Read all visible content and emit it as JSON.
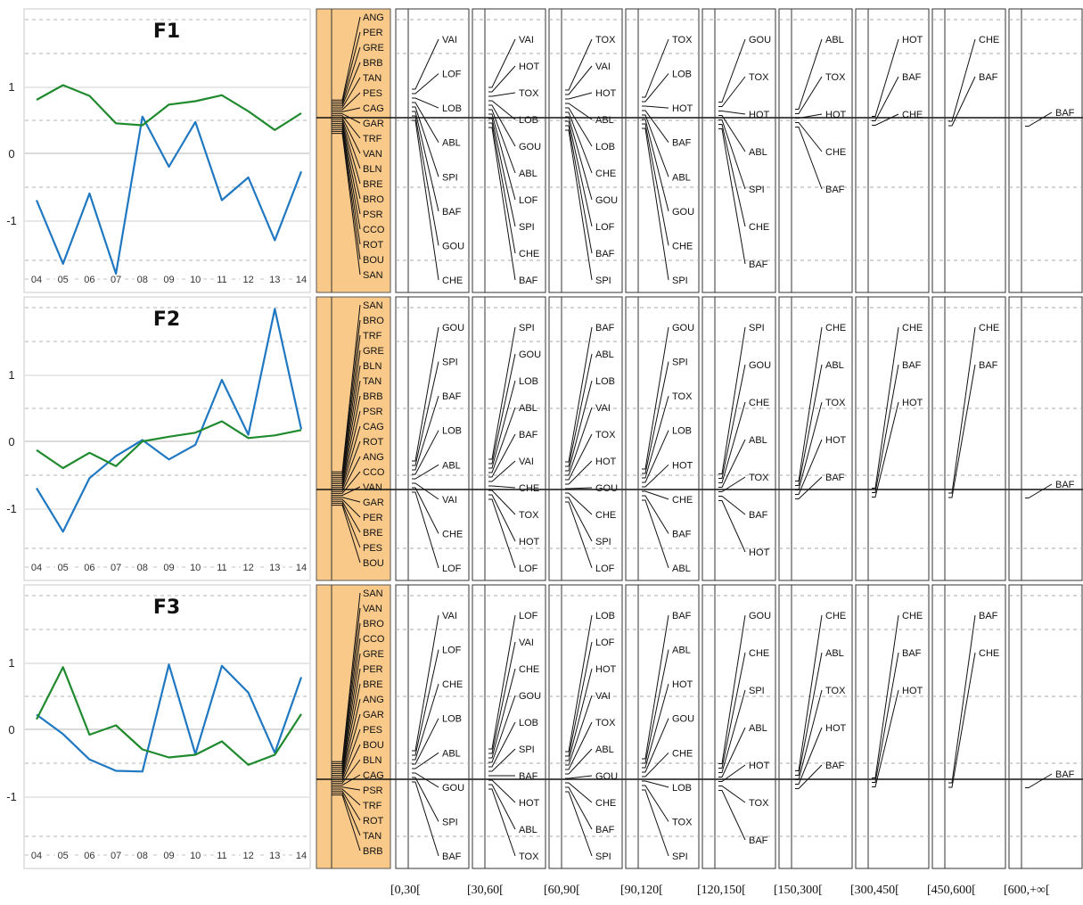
{
  "chart_data": {
    "type": "line",
    "x_ticks": [
      "04",
      "05",
      "06",
      "07",
      "08",
      "09",
      "10",
      "11",
      "12",
      "13",
      "14"
    ],
    "yticks": [
      1,
      0,
      -1
    ],
    "column_labels": [
      "[0,30[",
      "[30,60[",
      "[60,90[",
      "[90,120[",
      "[120,150[",
      "[150,300[",
      "[300,450[",
      "[450,600[",
      "[600,+∞["
    ],
    "colors": {
      "blue": "#1f78c1",
      "green": "#1f8a2e",
      "orange_panel": "#f9c98a"
    },
    "panels": [
      {
        "title": "F1",
        "series": [
          {
            "color": "#1f78c1",
            "values": [
              -0.7,
              -1.65,
              -0.6,
              -1.8,
              0.55,
              -0.2,
              0.47,
              -0.7,
              -0.36,
              -1.3,
              -0.27
            ]
          },
          {
            "color": "#1f8a2e",
            "values": [
              0.8,
              1.02,
              0.86,
              0.45,
              0.42,
              0.73,
              0.78,
              0.87,
              0.63,
              0.35,
              0.6
            ]
          }
        ],
        "sites": [
          "ANG",
          "PER",
          "GRE",
          "BRB",
          "TAN",
          "PES",
          "CAG",
          "GAR",
          "TRF",
          "VAN",
          "BLN",
          "BRE",
          "BRO",
          "PSR",
          "CCO",
          "ROT",
          "BOU",
          "SAN"
        ],
        "groups": [
          [
            "VAI",
            "LOF",
            "LOB",
            "ABL",
            "SPI",
            "BAF",
            "GOU",
            "CHE"
          ],
          [
            "VAI",
            "HOT",
            "TOX",
            "LOB",
            "GOU",
            "ABL",
            "LOF",
            "SPI",
            "CHE",
            "BAF"
          ],
          [
            "TOX",
            "VAI",
            "HOT",
            "ABL",
            "LOB",
            "CHE",
            "GOU",
            "LOF",
            "BAF",
            "SPI"
          ],
          [
            "TOX",
            "LOB",
            "HOT",
            "BAF",
            "ABL",
            "GOU",
            "CHE",
            "SPI"
          ],
          [
            "GOU",
            "TOX",
            "HOT",
            "ABL",
            "SPI",
            "CHE",
            "BAF"
          ],
          [
            "ABL",
            "TOX",
            "HOT",
            "CHE",
            "BAF"
          ],
          [
            "HOT",
            "BAF",
            "CHE"
          ],
          [
            "CHE",
            "BAF"
          ],
          [
            "BAF"
          ]
        ]
      },
      {
        "title": "F2",
        "series": [
          {
            "color": "#1f78c1",
            "values": [
              -0.7,
              -1.35,
              -0.55,
              -0.22,
              0.02,
              -0.27,
              -0.05,
              0.92,
              0.1,
              1.98,
              0.18
            ]
          },
          {
            "color": "#1f8a2e",
            "values": [
              -0.13,
              -0.4,
              -0.17,
              -0.37,
              0.0,
              0.07,
              0.13,
              0.3,
              0.05,
              0.09,
              0.17
            ]
          }
        ],
        "sites": [
          "SAN",
          "BRO",
          "TRF",
          "GRE",
          "BLN",
          "TAN",
          "BRB",
          "PSR",
          "CAG",
          "ROT",
          "ANG",
          "CCO",
          "VAN",
          "GAR",
          "PER",
          "BRE",
          "PES",
          "BOU"
        ],
        "groups": [
          [
            "GOU",
            "SPI",
            "BAF",
            "LOB",
            "ABL",
            "VAI",
            "CHE",
            "LOF"
          ],
          [
            "SPI",
            "GOU",
            "LOB",
            "ABL",
            "BAF",
            "VAI",
            "CHE",
            "TOX",
            "HOT",
            "LOF"
          ],
          [
            "BAF",
            "ABL",
            "LOB",
            "VAI",
            "TOX",
            "HOT",
            "GOU",
            "CHE",
            "SPI",
            "LOF"
          ],
          [
            "GOU",
            "SPI",
            "TOX",
            "LOB",
            "HOT",
            "CHE",
            "BAF",
            "ABL"
          ],
          [
            "SPI",
            "GOU",
            "CHE",
            "ABL",
            "TOX",
            "BAF",
            "HOT"
          ],
          [
            "CHE",
            "ABL",
            "TOX",
            "HOT",
            "BAF"
          ],
          [
            "CHE",
            "BAF",
            "HOT"
          ],
          [
            "CHE",
            "BAF"
          ],
          [
            "BAF"
          ]
        ]
      },
      {
        "title": "F3",
        "series": [
          {
            "color": "#1f78c1",
            "values": [
              0.22,
              -0.07,
              -0.45,
              -0.62,
              -0.63,
              0.97,
              -0.37,
              0.95,
              0.55,
              -0.35,
              0.78
            ]
          },
          {
            "color": "#1f8a2e",
            "values": [
              0.15,
              0.93,
              -0.08,
              0.06,
              -0.3,
              -0.42,
              -0.38,
              -0.18,
              -0.53,
              -0.38,
              0.23
            ]
          }
        ],
        "sites": [
          "SAN",
          "VAN",
          "BRO",
          "CCO",
          "GRE",
          "PER",
          "BRE",
          "ANG",
          "GAR",
          "PES",
          "BOU",
          "BLN",
          "CAG",
          "PSR",
          "TRF",
          "ROT",
          "TAN",
          "BRB"
        ],
        "groups": [
          [
            "VAI",
            "LOF",
            "CHE",
            "LOB",
            "ABL",
            "GOU",
            "SPI",
            "BAF"
          ],
          [
            "LOF",
            "VAI",
            "CHE",
            "GOU",
            "LOB",
            "SPI",
            "BAF",
            "HOT",
            "ABL",
            "TOX"
          ],
          [
            "LOB",
            "LOF",
            "HOT",
            "VAI",
            "TOX",
            "ABL",
            "GOU",
            "CHE",
            "BAF",
            "SPI"
          ],
          [
            "BAF",
            "ABL",
            "HOT",
            "GOU",
            "CHE",
            "LOB",
            "TOX",
            "SPI"
          ],
          [
            "GOU",
            "CHE",
            "SPI",
            "ABL",
            "HOT",
            "TOX",
            "BAF"
          ],
          [
            "CHE",
            "ABL",
            "TOX",
            "HOT",
            "BAF"
          ],
          [
            "CHE",
            "BAF",
            "HOT"
          ],
          [
            "BAF",
            "CHE"
          ],
          [
            "BAF"
          ]
        ]
      }
    ]
  }
}
